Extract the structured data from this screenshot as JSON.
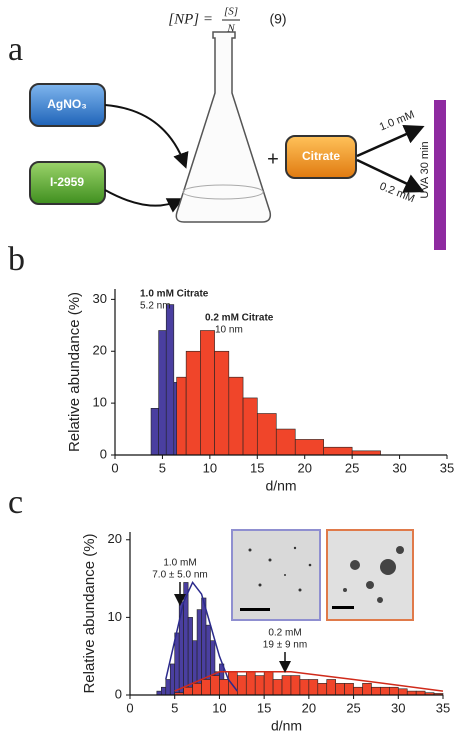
{
  "equation": {
    "lhs": "[NP] =",
    "numerator": "[S]",
    "denominator": "N",
    "number": "(9)"
  },
  "panel_labels": [
    "a",
    "b",
    "c"
  ],
  "panel_a": {
    "reagent_1": "AgNO₃",
    "reagent_2": "I-2959",
    "plus": "+",
    "reagent_3": "Citrate",
    "condition_1": "1.0 mM",
    "condition_2": "0.2 mM",
    "treatment": "UVA 30 min"
  },
  "chart_data": [
    {
      "type": "histogram",
      "x_label": "d/nm",
      "y_label": "Relative abundance (%)",
      "xlim": [
        0,
        35
      ],
      "xticks": [
        0,
        5,
        10,
        15,
        20,
        25,
        30,
        35
      ],
      "ylim": [
        0,
        32
      ],
      "yticks": [
        0,
        10,
        20,
        30
      ],
      "grid": false,
      "annotations": [
        "1.0 mM  Citrate",
        "5.2 nm",
        "0.2 mM  Citrate",
        "10 nm"
      ],
      "series": [
        {
          "color": "#4a3fa0",
          "bins": [
            3.8,
            4.6,
            5.4,
            6.2,
            7.0
          ],
          "values": [
            9,
            24,
            29,
            14
          ]
        },
        {
          "color": "#f0452a",
          "bins": [
            6.5,
            7.5,
            9,
            10.5,
            12,
            13.5,
            15,
            17,
            19,
            22,
            25,
            28
          ],
          "values": [
            15,
            20,
            24,
            20,
            15,
            11,
            8,
            5,
            3,
            1.5,
            0.8
          ]
        }
      ]
    },
    {
      "type": "histogram",
      "x_label": "d/nm",
      "y_label": "Relative abundance (%)",
      "xlim": [
        0,
        35
      ],
      "xticks": [
        0,
        5,
        10,
        15,
        20,
        25,
        30,
        35
      ],
      "ylim": [
        0,
        21
      ],
      "yticks": [
        0,
        10,
        20
      ],
      "grid": false,
      "annotations": [
        "1.0 mM",
        "7.0 ± 5.0 nm",
        "0.2 mM",
        "19 ± 9 nm"
      ],
      "series": [
        {
          "color": "#4a3fa0",
          "bins": [
            3,
            3.5,
            4,
            4.5,
            5,
            5.5,
            6,
            6.5,
            7,
            7.5,
            8,
            8.5,
            9,
            9.5,
            10,
            10.5,
            11,
            11.5,
            12,
            12.5,
            13
          ],
          "values": [
            0.5,
            1,
            2,
            4,
            8,
            12,
            14.5,
            10,
            7,
            11,
            12.5,
            9,
            7,
            3,
            4,
            2,
            1.5,
            1,
            0.5,
            0.3
          ]
        },
        {
          "color": "#f0452a",
          "bins": [
            5,
            6,
            7,
            8,
            9,
            10,
            11,
            12,
            13,
            14,
            15,
            16,
            17,
            18,
            19,
            20,
            21,
            22,
            23,
            24,
            25,
            26,
            27,
            28,
            29,
            30,
            31,
            32,
            33,
            34,
            35
          ],
          "values": [
            0.3,
            1,
            1.5,
            2,
            2.5,
            2,
            3,
            2.5,
            3,
            2.5,
            3,
            2,
            2.5,
            2.5,
            2,
            2,
            1.5,
            2,
            1.5,
            1.5,
            1,
            1.5,
            1,
            1,
            1,
            0.8,
            0.5,
            0.5,
            0.3,
            0.2
          ]
        }
      ],
      "fits": [
        {
          "color": "#2b2a8c",
          "x": [
            4,
            5,
            6,
            7,
            8,
            9,
            10,
            11,
            12
          ],
          "values": [
            2,
            7,
            12,
            14.5,
            13,
            9,
            5,
            2,
            0.5
          ]
        },
        {
          "color": "#d02a1a",
          "x": [
            5,
            10,
            18,
            25,
            35
          ],
          "values": [
            0.5,
            3,
            3,
            2,
            0.5
          ]
        }
      ]
    }
  ]
}
